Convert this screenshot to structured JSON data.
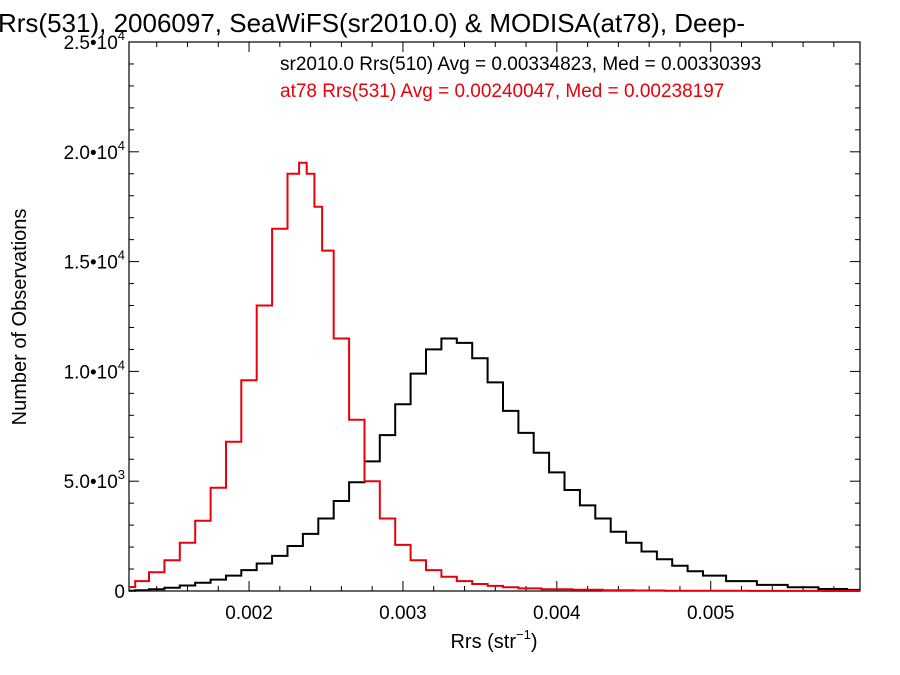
{
  "chart_data": {
    "type": "line",
    "title": "Rrs(531), 2006097, SeaWiFS(sr2010.0) & MODISA(at78), Deep-",
    "xlabel": {
      "base": "Rrs (str",
      "sup": "−1",
      "tail": ")"
    },
    "ylabel": "Number of Observations",
    "xlim": [
      0.00122,
      0.00597
    ],
    "ylim": [
      0,
      25000
    ],
    "x_ticks": [
      {
        "value": 0.002,
        "label": "0.002"
      },
      {
        "value": 0.003,
        "label": "0.003"
      },
      {
        "value": 0.004,
        "label": "0.004"
      },
      {
        "value": 0.005,
        "label": "0.005"
      }
    ],
    "y_ticks": [
      {
        "value": 0,
        "mant": "0",
        "exp": ""
      },
      {
        "value": 5000,
        "mant": "5.0•10",
        "exp": "3"
      },
      {
        "value": 10000,
        "mant": "1.0•10",
        "exp": "4"
      },
      {
        "value": 15000,
        "mant": "1.5•10",
        "exp": "4"
      },
      {
        "value": 20000,
        "mant": "2.0•10",
        "exp": "4"
      },
      {
        "value": 25000,
        "mant": "2.5•10",
        "exp": "4"
      }
    ],
    "grid": false,
    "legend_position": "top-right",
    "annotations": [
      {
        "text": "sr2010.0 Rrs(510) Avg = 0.00334823, Med = 0.00330393",
        "color": "#000000"
      },
      {
        "text": "at78 Rrs(531) Avg = 0.00240047, Med = 0.00238197",
        "color": "#e8000b"
      }
    ],
    "series": [
      {
        "color": "#000000",
        "x": [
          0.00122,
          0.0013,
          0.0014,
          0.0015,
          0.0016,
          0.0017,
          0.0018,
          0.0019,
          0.002,
          0.0021,
          0.0022,
          0.0023,
          0.0024,
          0.0025,
          0.0026,
          0.0027,
          0.0028,
          0.0029,
          0.003,
          0.0031,
          0.0032,
          0.0033,
          0.0034,
          0.0035,
          0.0036,
          0.0037,
          0.0038,
          0.0039,
          0.004,
          0.0041,
          0.0042,
          0.0043,
          0.0044,
          0.0045,
          0.0046,
          0.0047,
          0.0048,
          0.0049,
          0.005,
          0.0052,
          0.0054,
          0.0056,
          0.0058,
          0.00597
        ],
        "values": [
          10,
          30,
          80,
          150,
          250,
          380,
          520,
          700,
          950,
          1250,
          1600,
          2050,
          2600,
          3300,
          4100,
          4950,
          5900,
          7100,
          8500,
          9900,
          11000,
          11500,
          11300,
          10600,
          9500,
          8200,
          7200,
          6300,
          5400,
          4600,
          3900,
          3300,
          2700,
          2200,
          1800,
          1450,
          1150,
          900,
          700,
          450,
          280,
          170,
          90,
          50
        ]
      },
      {
        "color": "#e8000b",
        "x": [
          0.00122,
          0.0013,
          0.0014,
          0.0015,
          0.0016,
          0.0017,
          0.0018,
          0.0019,
          0.002,
          0.0021,
          0.0022,
          0.0023,
          0.00235,
          0.0024,
          0.00245,
          0.0025,
          0.0026,
          0.0027,
          0.0028,
          0.0029,
          0.003,
          0.0031,
          0.0032,
          0.0033,
          0.0034,
          0.0035,
          0.0036,
          0.0037,
          0.0038,
          0.004,
          0.0042,
          0.0044,
          0.0046,
          0.0048,
          0.005,
          0.0055,
          0.00597
        ],
        "values": [
          180,
          450,
          850,
          1400,
          2200,
          3200,
          4700,
          6800,
          9600,
          13000,
          16500,
          19000,
          19500,
          19000,
          17500,
          15500,
          11500,
          7800,
          5000,
          3300,
          2100,
          1400,
          950,
          650,
          450,
          320,
          230,
          170,
          120,
          80,
          55,
          35,
          25,
          15,
          10,
          5,
          2
        ]
      }
    ]
  }
}
